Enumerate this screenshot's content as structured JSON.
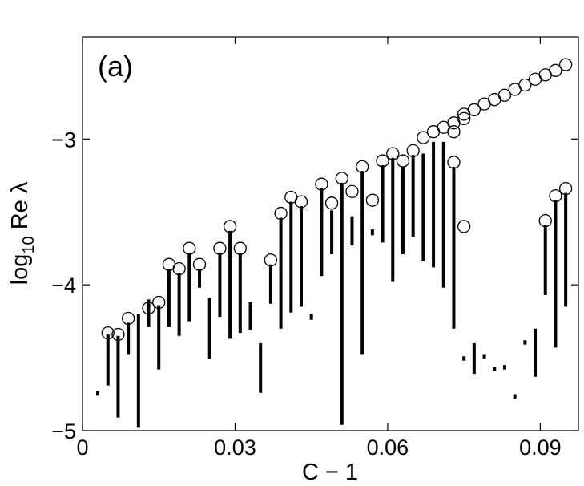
{
  "chart_data": {
    "type": "scatter",
    "panel_label": "(a)",
    "xlabel": "C − 1",
    "ylabel_main": "log",
    "ylabel_sub": "10",
    "ylabel_rest": " Re λ",
    "xlim": [
      0,
      0.0975
    ],
    "ylim": [
      -5,
      -2.3
    ],
    "xticks": [
      {
        "value": 0,
        "label": "0"
      },
      {
        "value": 0.03,
        "label": "0.03"
      },
      {
        "value": 0.06,
        "label": "0.06"
      },
      {
        "value": 0.09,
        "label": "0.09"
      }
    ],
    "yticks": [
      {
        "value": -3,
        "label": "−3"
      },
      {
        "value": -4,
        "label": "−4"
      },
      {
        "value": -5,
        "label": "−5"
      }
    ],
    "grid": false,
    "series": [
      {
        "kind": "circles",
        "points": [
          [
            0.005,
            -4.33
          ],
          [
            0.007,
            -4.34
          ],
          [
            0.009,
            -4.23
          ],
          [
            0.013,
            -4.16
          ],
          [
            0.015,
            -4.12
          ],
          [
            0.017,
            -3.86
          ],
          [
            0.019,
            -3.89
          ],
          [
            0.021,
            -3.75
          ],
          [
            0.023,
            -3.86
          ],
          [
            0.027,
            -3.75
          ],
          [
            0.029,
            -3.6
          ],
          [
            0.031,
            -3.75
          ],
          [
            0.037,
            -3.83
          ],
          [
            0.039,
            -3.51
          ],
          [
            0.041,
            -3.4
          ],
          [
            0.043,
            -3.43
          ],
          [
            0.047,
            -3.31
          ],
          [
            0.049,
            -3.44
          ],
          [
            0.051,
            -3.27
          ],
          [
            0.053,
            -3.36
          ],
          [
            0.055,
            -3.19
          ],
          [
            0.057,
            -3.42
          ],
          [
            0.059,
            -3.15
          ],
          [
            0.061,
            -3.1
          ],
          [
            0.063,
            -3.15
          ],
          [
            0.065,
            -3.08
          ],
          [
            0.067,
            -2.99
          ],
          [
            0.069,
            -2.95
          ],
          [
            0.071,
            -2.92
          ],
          [
            0.073,
            -2.89
          ],
          [
            0.073,
            -2.95
          ],
          [
            0.073,
            -3.16
          ],
          [
            0.075,
            -2.86
          ],
          [
            0.075,
            -2.83
          ],
          [
            0.075,
            -3.6
          ],
          [
            0.077,
            -2.8
          ],
          [
            0.079,
            -2.76
          ],
          [
            0.081,
            -2.73
          ],
          [
            0.083,
            -2.7
          ],
          [
            0.085,
            -2.66
          ],
          [
            0.087,
            -2.63
          ],
          [
            0.089,
            -2.59
          ],
          [
            0.091,
            -2.56
          ],
          [
            0.093,
            -2.53
          ],
          [
            0.095,
            -2.49
          ],
          [
            0.091,
            -3.56
          ],
          [
            0.093,
            -3.39
          ],
          [
            0.095,
            -3.34
          ]
        ]
      },
      {
        "kind": "vertical-bars",
        "segments": [
          [
            0.003,
            -4.73,
            -4.76
          ],
          [
            0.005,
            -4.34,
            -4.69
          ],
          [
            0.007,
            -4.35,
            -4.91
          ],
          [
            0.009,
            -4.26,
            -4.48
          ],
          [
            0.011,
            -4.2,
            -4.98
          ],
          [
            0.013,
            -4.1,
            -4.29
          ],
          [
            0.015,
            -4.14,
            -4.58
          ],
          [
            0.017,
            -3.89,
            -4.29
          ],
          [
            0.019,
            -3.92,
            -4.35
          ],
          [
            0.021,
            -3.78,
            -4.25
          ],
          [
            0.023,
            -3.89,
            -4.02
          ],
          [
            0.025,
            -4.09,
            -4.51
          ],
          [
            0.027,
            -3.78,
            -4.22
          ],
          [
            0.029,
            -3.63,
            -4.37
          ],
          [
            0.031,
            -3.78,
            -4.33
          ],
          [
            0.033,
            -4.12,
            -4.31
          ],
          [
            0.035,
            -4.4,
            -4.74
          ],
          [
            0.037,
            -3.86,
            -4.13
          ],
          [
            0.039,
            -3.54,
            -4.3
          ],
          [
            0.041,
            -3.43,
            -4.19
          ],
          [
            0.043,
            -3.46,
            -4.15
          ],
          [
            0.045,
            -4.2,
            -4.24
          ],
          [
            0.047,
            -3.34,
            -3.94
          ],
          [
            0.049,
            -3.49,
            -3.79
          ],
          [
            0.051,
            -3.3,
            -4.96
          ],
          [
            0.053,
            -3.53,
            -3.73
          ],
          [
            0.055,
            -3.22,
            -4.48
          ],
          [
            0.057,
            -3.62,
            -3.66
          ],
          [
            0.059,
            -3.18,
            -3.71
          ],
          [
            0.061,
            -3.13,
            -3.98
          ],
          [
            0.063,
            -3.19,
            -3.79
          ],
          [
            0.065,
            -3.11,
            -3.67
          ],
          [
            0.067,
            -3.1,
            -3.84
          ],
          [
            0.069,
            -3.02,
            -3.88
          ],
          [
            0.071,
            -3.02,
            -4.02
          ],
          [
            0.073,
            -3.19,
            -4.3
          ],
          [
            0.075,
            -4.49,
            -4.52
          ],
          [
            0.077,
            -4.4,
            -4.61
          ],
          [
            0.079,
            -4.48,
            -4.51
          ],
          [
            0.081,
            -4.56,
            -4.59
          ],
          [
            0.083,
            -4.55,
            -4.58
          ],
          [
            0.085,
            -4.75,
            -4.78
          ],
          [
            0.087,
            -4.38,
            -4.41
          ],
          [
            0.089,
            -4.3,
            -4.63
          ],
          [
            0.091,
            -3.59,
            -4.07
          ],
          [
            0.093,
            -3.42,
            -4.43
          ],
          [
            0.095,
            -3.37,
            -4.15
          ]
        ]
      }
    ]
  }
}
